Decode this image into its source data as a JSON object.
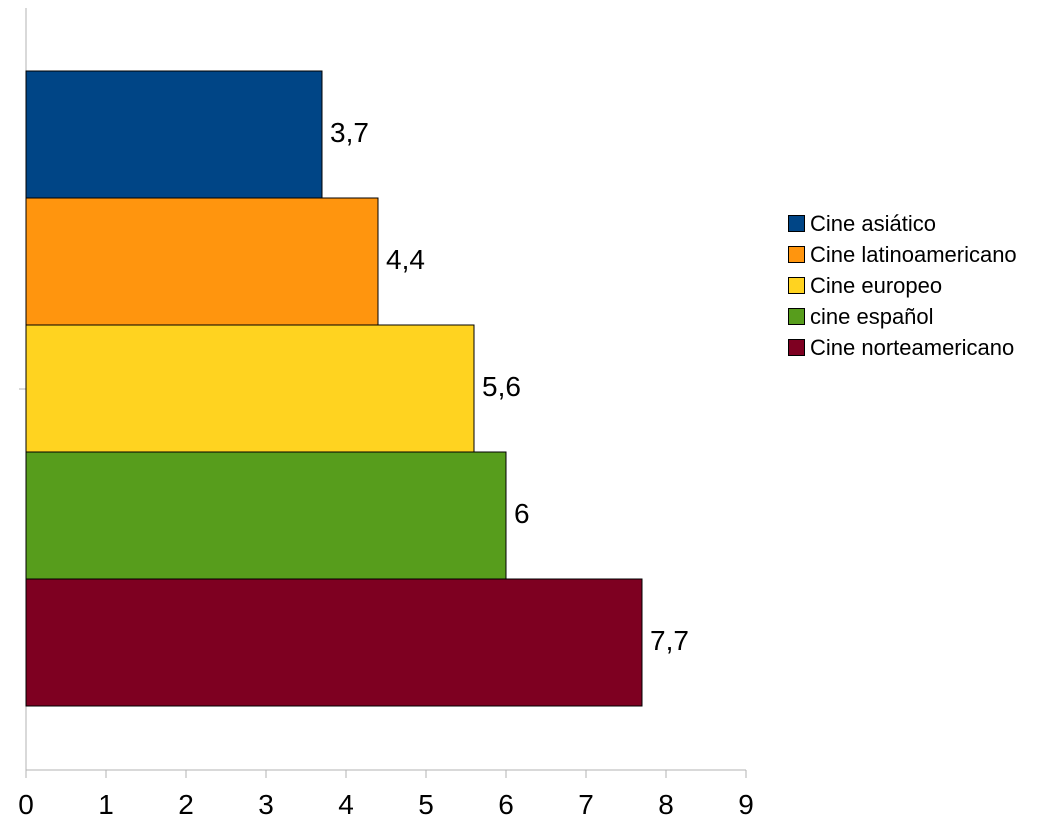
{
  "chart_data": {
    "type": "bar",
    "orientation": "horizontal",
    "title": "",
    "xlabel": "",
    "ylabel": "",
    "xlim": [
      0,
      9
    ],
    "x_ticks": [
      "0",
      "1",
      "2",
      "3",
      "4",
      "5",
      "6",
      "7",
      "8",
      "9"
    ],
    "grid": false,
    "legend_position": "right",
    "series": [
      {
        "name": "Cine asiático",
        "value": 3.7,
        "label": "3,7",
        "color": "#004586"
      },
      {
        "name": "Cine latinoamericano",
        "value": 4.4,
        "label": "4,4",
        "color": "#ff950e"
      },
      {
        "name": "Cine europeo",
        "value": 5.6,
        "label": "5,6",
        "color": "#ffd320"
      },
      {
        "name": "cine español",
        "value": 6,
        "label": "6",
        "color": "#579d1c"
      },
      {
        "name": "Cine norteamericano",
        "value": 7.7,
        "label": "7,7",
        "color": "#7e0021"
      }
    ]
  }
}
